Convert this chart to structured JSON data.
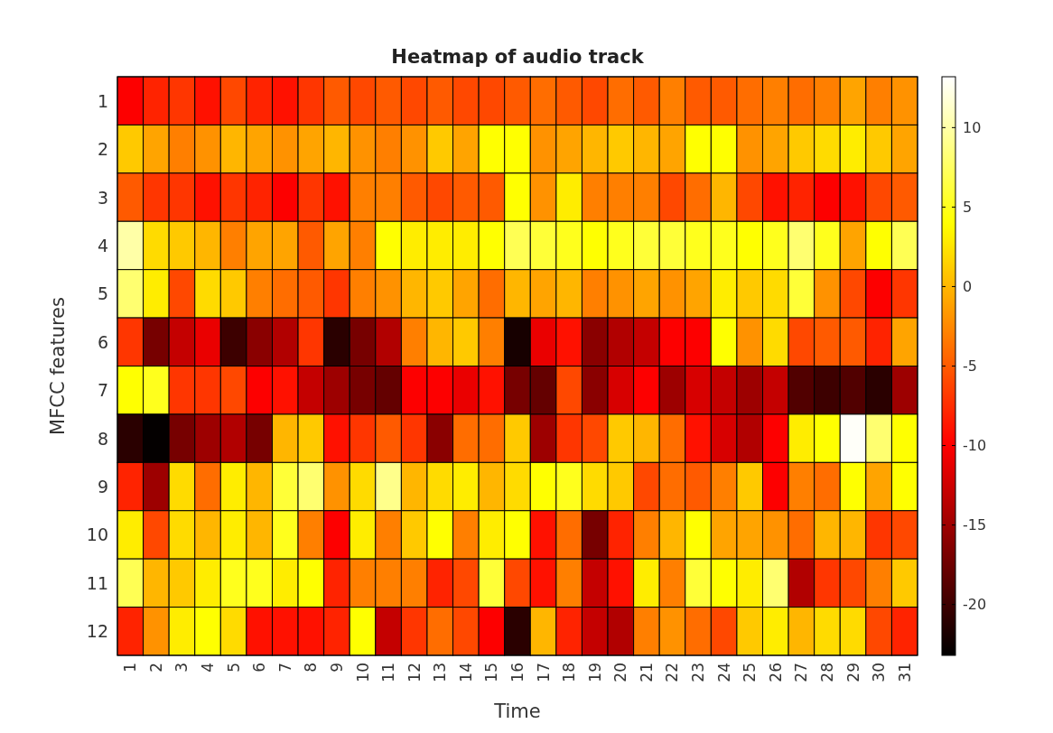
{
  "chart_data": {
    "type": "heatmap",
    "title": "Heatmap of audio track",
    "xlabel": "Time",
    "ylabel": "MFCC features",
    "categories": [
      "1",
      "2",
      "3",
      "4",
      "5",
      "6",
      "7",
      "8",
      "9",
      "10",
      "11",
      "12",
      "13",
      "14",
      "15",
      "16",
      "17",
      "18",
      "19",
      "20",
      "21",
      "22",
      "23",
      "24",
      "25",
      "26",
      "27",
      "28",
      "29",
      "30",
      "31"
    ],
    "y_categories": [
      "1",
      "2",
      "3",
      "4",
      "5",
      "6",
      "7",
      "8",
      "9",
      "10",
      "11",
      "12"
    ],
    "cells": [
      [
        -10,
        -8,
        -7,
        -9,
        -6,
        -8,
        -9,
        -7,
        -5,
        -6,
        -5,
        -6,
        -5,
        -6,
        -6,
        -5,
        -4,
        -5,
        -6,
        -4,
        -5,
        -3,
        -5,
        -5,
        -4,
        -3,
        -4,
        -3,
        -1,
        -3,
        -2
      ],
      [
        1,
        -1,
        -3,
        -2,
        0,
        -1,
        -2,
        -1,
        0,
        -2,
        -3,
        -2,
        1,
        -1,
        4,
        4,
        -2,
        -1,
        0,
        1,
        0,
        -1,
        4,
        4,
        -2,
        -1,
        1,
        2,
        3,
        1,
        -1
      ],
      [
        -5,
        -7,
        -7,
        -9,
        -7,
        -8,
        -10,
        -7,
        -9,
        -3,
        -3,
        -5,
        -6,
        -5,
        -5,
        4,
        -2,
        3,
        -3,
        -3,
        -3,
        -6,
        -4,
        0,
        -6,
        -9,
        -8,
        -10,
        -9,
        -6,
        -5
      ],
      [
        10,
        2,
        1,
        0,
        -3,
        -1,
        -1,
        -5,
        -1,
        -3,
        4,
        3,
        3,
        3,
        4,
        7,
        6,
        5,
        4,
        5,
        6,
        6,
        5,
        5,
        4,
        5,
        8,
        5,
        -1,
        4,
        7
      ],
      [
        8,
        3,
        -6,
        2,
        1,
        -3,
        -4,
        -5,
        -7,
        -3,
        -2,
        0,
        1,
        -1,
        -4,
        0,
        -1,
        0,
        -3,
        -2,
        -1,
        -2,
        -1,
        3,
        1,
        2,
        6,
        -2,
        -6,
        -10,
        -7
      ],
      [
        -7,
        -17,
        -13,
        -11,
        -20,
        -16,
        -14,
        -7,
        -21,
        -17,
        -14,
        -3,
        0,
        1,
        -3,
        -22,
        -11,
        -9,
        -16,
        -14,
        -13,
        -10,
        -10,
        4,
        -2,
        2,
        -6,
        -5,
        -5,
        -8,
        -1
      ],
      [
        4,
        5,
        -7,
        -7,
        -6,
        -10,
        -9,
        -13,
        -15,
        -17,
        -18,
        -10,
        -10,
        -11,
        -9,
        -17,
        -18,
        -6,
        -16,
        -12,
        -10,
        -15,
        -12,
        -13,
        -15,
        -13,
        -19,
        -20,
        -19,
        -21,
        -15
      ],
      [
        -21,
        -23,
        -17,
        -15,
        -14,
        -17,
        0,
        1,
        -9,
        -7,
        -5,
        -7,
        -16,
        -4,
        -4,
        1,
        -15,
        -7,
        -6,
        1,
        0,
        -4,
        -9,
        -12,
        -14,
        -10,
        3,
        4,
        13,
        8,
        4
      ],
      [
        -8,
        -15,
        2,
        -4,
        3,
        0,
        6,
        8,
        -2,
        2,
        9,
        0,
        2,
        3,
        0,
        2,
        4,
        5,
        2,
        1,
        -6,
        -4,
        -5,
        -3,
        1,
        -10,
        -3,
        -4,
        4,
        -1,
        4
      ],
      [
        3,
        -6,
        2,
        0,
        3,
        0,
        5,
        -3,
        -10,
        3,
        -3,
        1,
        4,
        -3,
        3,
        4,
        -9,
        -4,
        -17,
        -8,
        -3,
        0,
        4,
        -1,
        -1,
        -2,
        -4,
        0,
        0,
        -7,
        -6
      ],
      [
        7,
        0,
        1,
        3,
        5,
        5,
        3,
        4,
        -8,
        -3,
        -3,
        -3,
        -8,
        -6,
        6,
        -6,
        -9,
        -3,
        -13,
        -9,
        3,
        -3,
        6,
        4,
        3,
        8,
        -14,
        -7,
        -6,
        -3,
        1
      ],
      [
        -8,
        -2,
        3,
        4,
        2,
        -9,
        -9,
        -9,
        -8,
        4,
        -13,
        -7,
        -4,
        -6,
        -10,
        -21,
        0,
        -8,
        -13,
        -14,
        -3,
        -2,
        -4,
        -6,
        1,
        3,
        0,
        2,
        2,
        -6,
        -8
      ]
    ],
    "clim": [
      -23.2,
      13.2
    ],
    "cticks": [
      -20,
      -15,
      -10,
      -5,
      0,
      5,
      10
    ]
  }
}
